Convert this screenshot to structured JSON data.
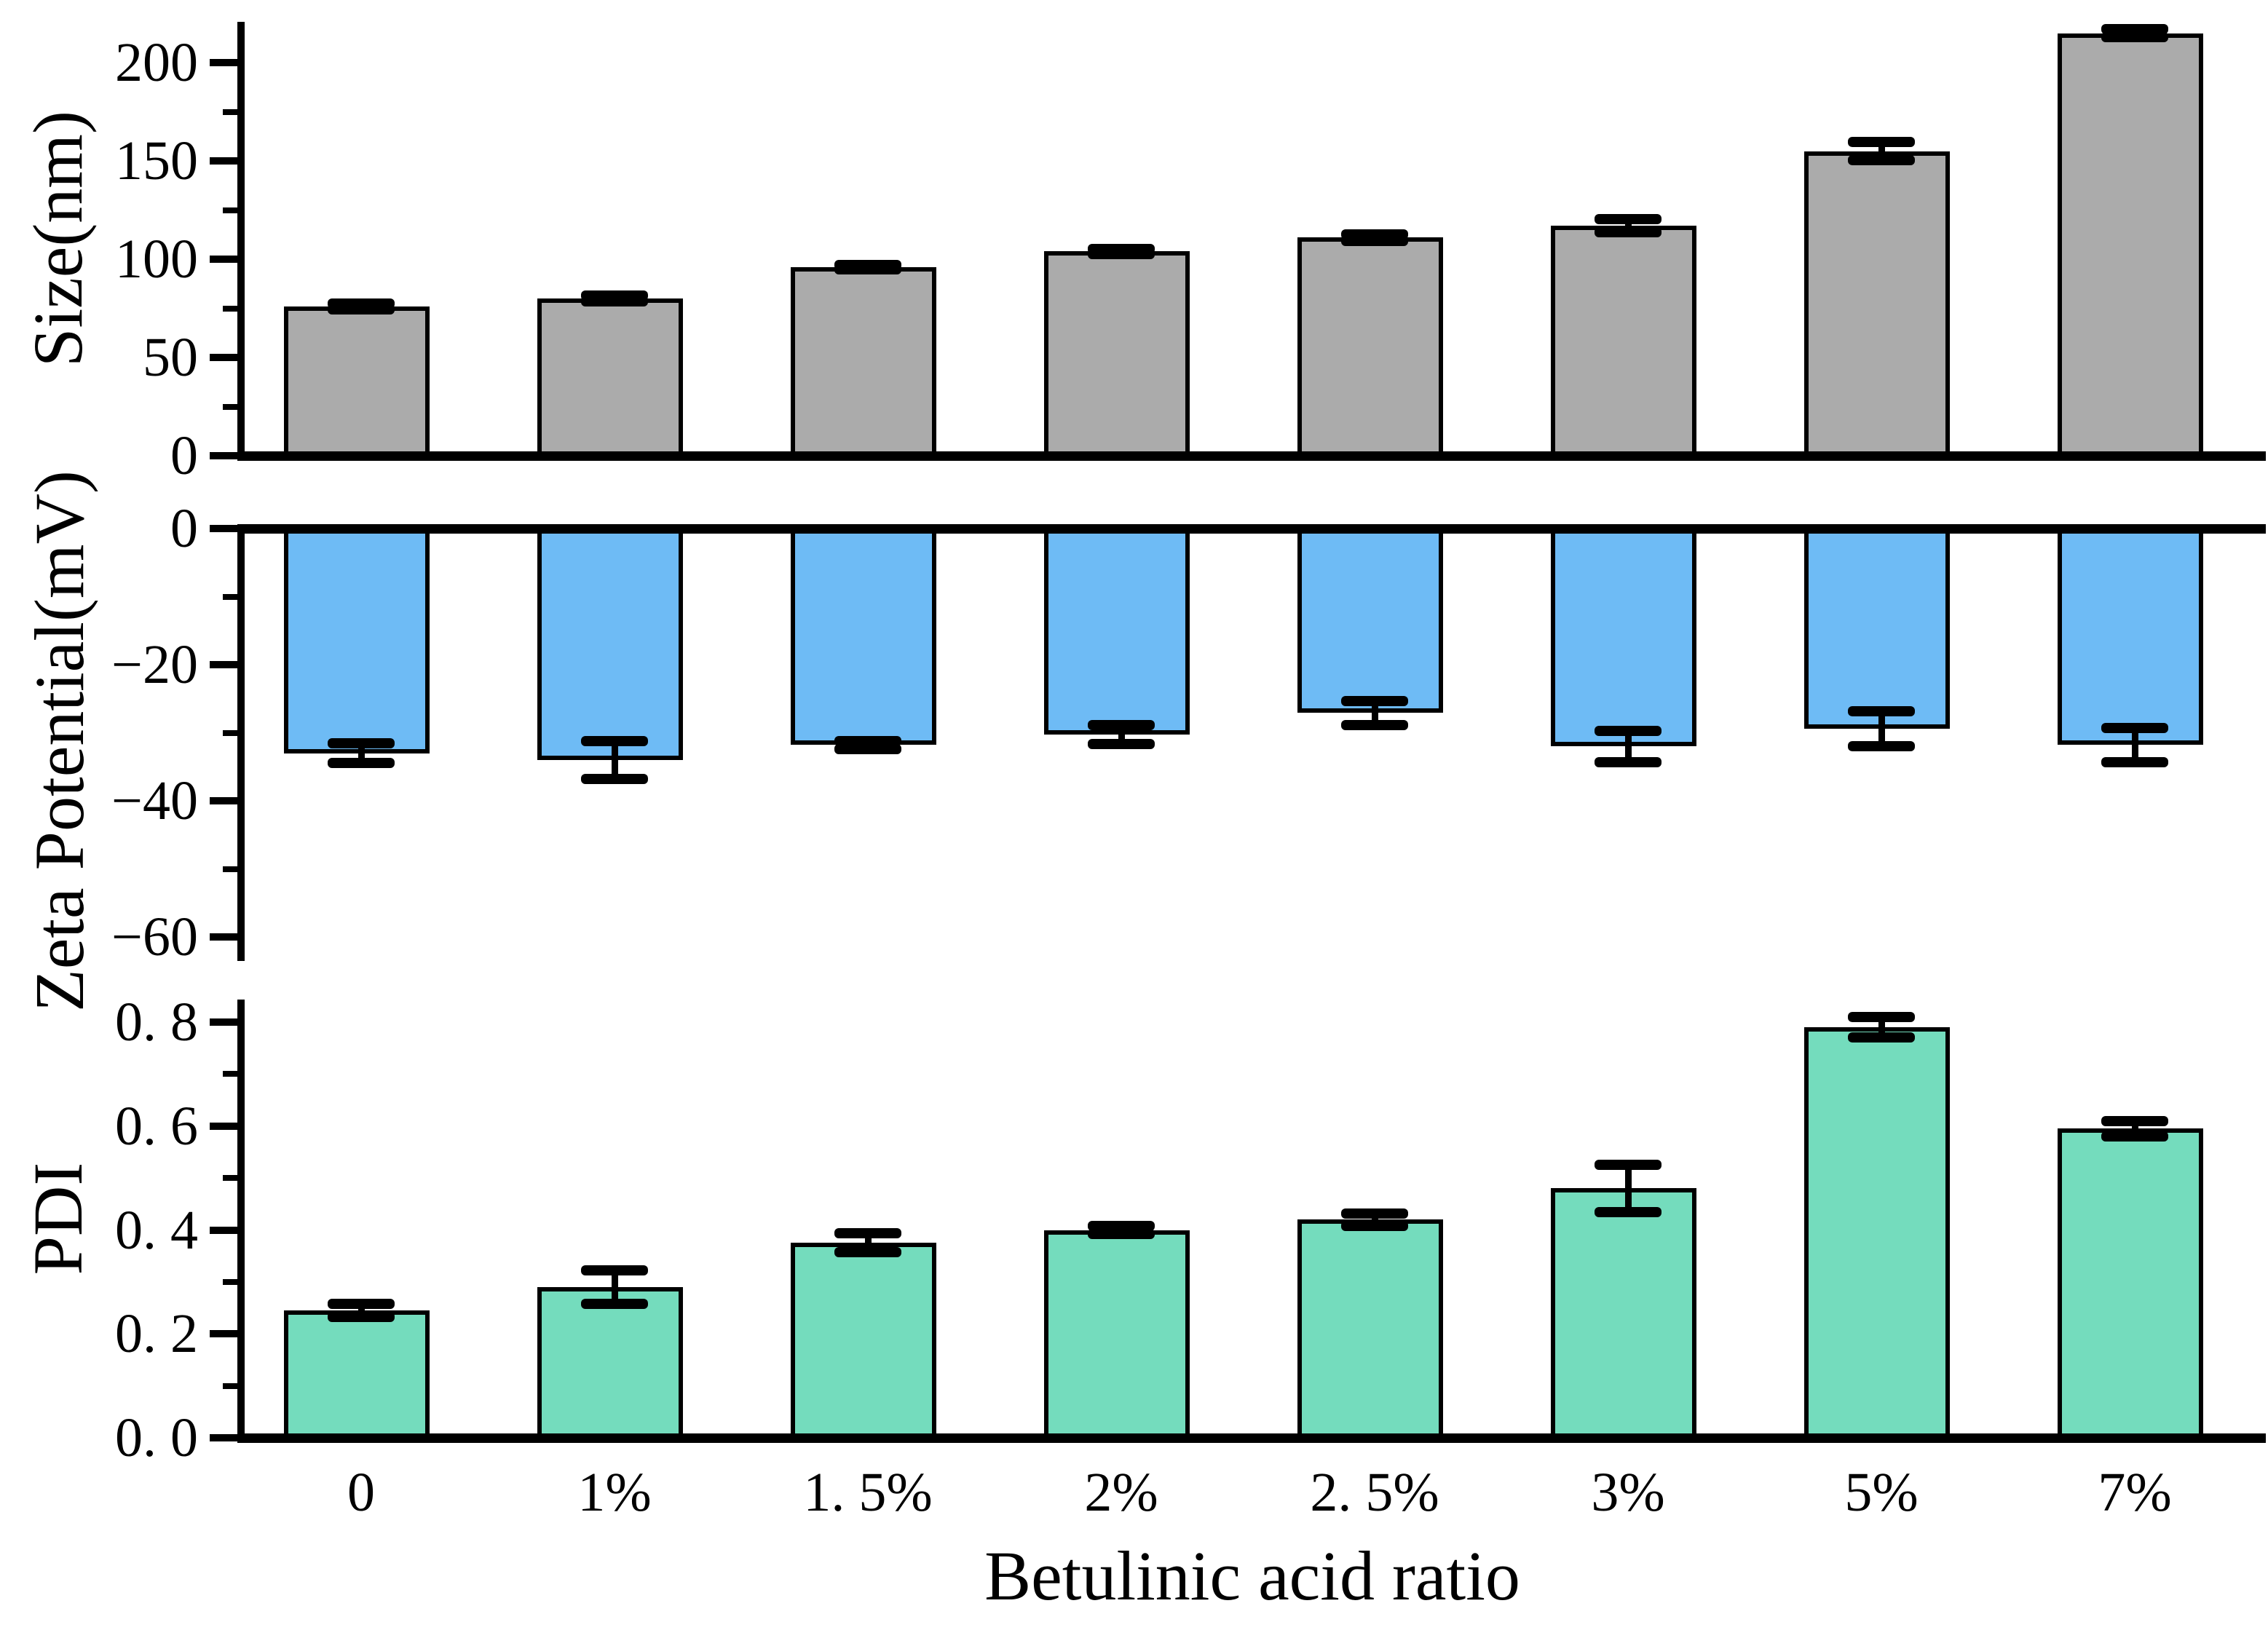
{
  "figure": {
    "background": "#ffffff",
    "x_axis_title": "Betulinic acid ratio",
    "categories": [
      "0",
      "1%",
      "1. 5%",
      "2%",
      "2. 5%",
      "3%",
      "5%",
      "7%"
    ]
  },
  "chart_data": [
    {
      "type": "bar",
      "id": "size",
      "ylabel": "Size(nm)",
      "categories": [
        "0",
        "1%",
        "1. 5%",
        "2%",
        "2. 5%",
        "3%",
        "5%",
        "7%"
      ],
      "values": [
        76,
        80,
        96,
        104,
        111,
        117,
        155,
        215
      ],
      "errors": [
        1.5,
        1.3,
        1.0,
        1.3,
        1.6,
        3.2,
        4.5,
        2.2
      ],
      "bar_color": "#ABABAB",
      "edge_color": "#000000",
      "error_color": "#000000",
      "ylim": [
        0,
        220
      ],
      "yticks_major": {
        "values": [
          0,
          50,
          100,
          150,
          200
        ],
        "labels": [
          "0",
          "50",
          "100",
          "150",
          "200"
        ]
      },
      "yticks_minor": [
        25,
        75,
        125,
        175
      ],
      "grid": false,
      "legend": null
    },
    {
      "type": "bar",
      "id": "zeta",
      "ylabel": "Zeta Potential(mV)",
      "categories": [
        "0",
        "1%",
        "1. 5%",
        "2%",
        "2. 5%",
        "3%",
        "5%",
        "7%"
      ],
      "values": [
        -33,
        -34,
        -31.8,
        -30.3,
        -27.1,
        -32,
        -29.4,
        -31.8
      ],
      "errors": [
        1.4,
        2.8,
        0.6,
        1.4,
        1.8,
        2.3,
        2.6,
        2.5
      ],
      "bar_color": "#6EBBF5",
      "edge_color": "#000000",
      "error_color": "#000000",
      "ylim": [
        -63.5,
        0
      ],
      "yticks_major": {
        "values": [
          0,
          -20,
          -40,
          -60
        ],
        "labels": [
          "0",
          "−20",
          "−40",
          "−60"
        ]
      },
      "yticks_minor": [
        -10,
        -30,
        -50
      ],
      "grid": false,
      "legend": null
    },
    {
      "type": "bar",
      "id": "pdi",
      "ylabel": "PDI",
      "categories": [
        "0",
        "1%",
        "1. 5%",
        "2%",
        "2. 5%",
        "3%",
        "5%",
        "7%"
      ],
      "values": [
        0.245,
        0.29,
        0.375,
        0.4,
        0.42,
        0.48,
        0.79,
        0.595
      ],
      "errors": [
        0.013,
        0.032,
        0.018,
        0.008,
        0.012,
        0.045,
        0.02,
        0.015
      ],
      "bar_color": "#74DCBD",
      "edge_color": "#000000",
      "error_color": "#000000",
      "ylim": [
        0,
        0.84
      ],
      "yticks_major": {
        "values": [
          0.0,
          0.2,
          0.4,
          0.6,
          0.8
        ],
        "labels": [
          "0. 0",
          "0. 2",
          "0. 4",
          "0. 6",
          "0. 8"
        ]
      },
      "yticks_minor": [
        0.1,
        0.3,
        0.5,
        0.7
      ],
      "grid": false,
      "legend": null
    }
  ]
}
